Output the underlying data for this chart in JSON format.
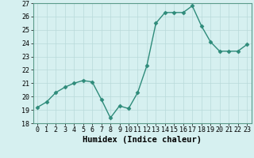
{
  "x": [
    0,
    1,
    2,
    3,
    4,
    5,
    6,
    7,
    8,
    9,
    10,
    11,
    12,
    13,
    14,
    15,
    16,
    17,
    18,
    19,
    20,
    21,
    22,
    23
  ],
  "y": [
    19.2,
    19.6,
    20.3,
    20.7,
    21.0,
    21.2,
    21.1,
    19.8,
    18.4,
    19.3,
    19.1,
    20.3,
    22.3,
    25.5,
    26.3,
    26.3,
    26.3,
    26.8,
    25.3,
    24.1,
    23.4,
    23.4,
    23.4,
    23.9
  ],
  "line_color": "#2e8b7a",
  "marker_color": "#2e8b7a",
  "bg_color": "#d6f0f0",
  "grid_color": "#b8dada",
  "xlabel": "Humidex (Indice chaleur)",
  "xlim": [
    -0.5,
    23.5
  ],
  "ylim": [
    18,
    27
  ],
  "yticks": [
    18,
    19,
    20,
    21,
    22,
    23,
    24,
    25,
    26,
    27
  ],
  "xticks": [
    0,
    1,
    2,
    3,
    4,
    5,
    6,
    7,
    8,
    9,
    10,
    11,
    12,
    13,
    14,
    15,
    16,
    17,
    18,
    19,
    20,
    21,
    22,
    23
  ],
  "xlabel_fontsize": 7.5,
  "tick_fontsize": 6,
  "linewidth": 1.0,
  "markersize": 2.5
}
